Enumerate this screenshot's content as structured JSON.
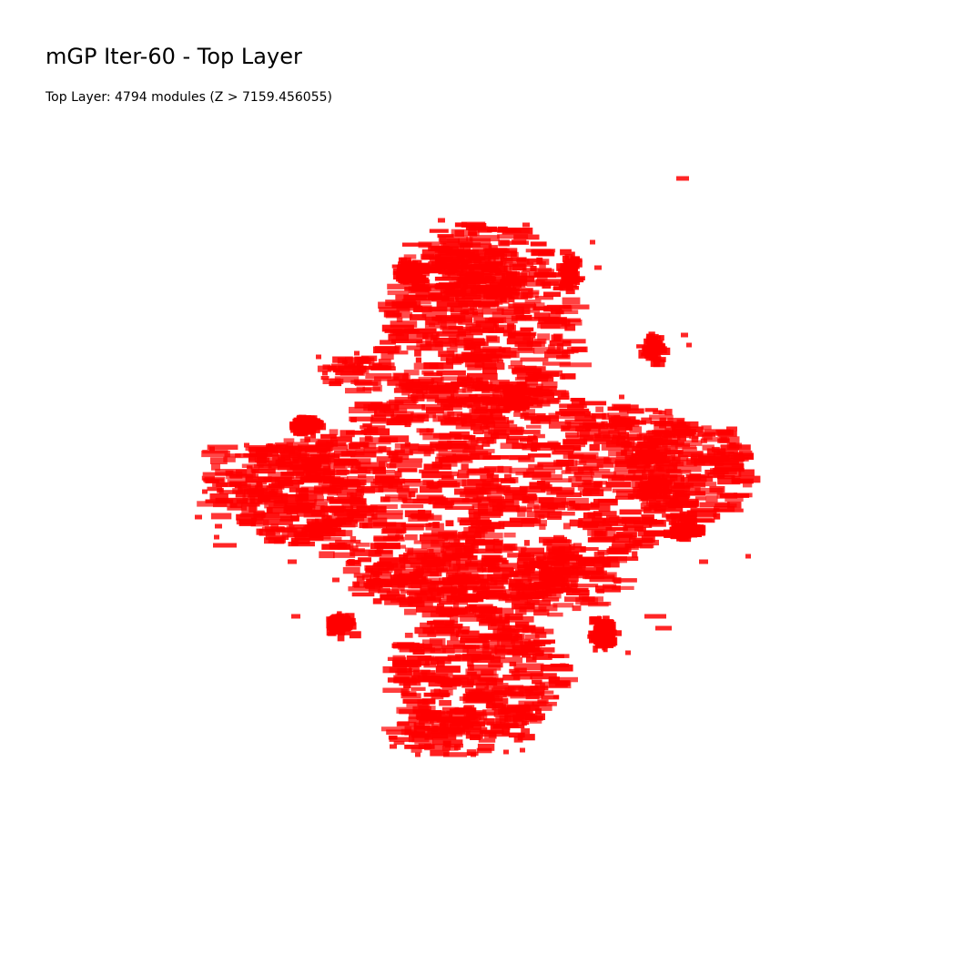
{
  "header": {
    "title": "mGP Iter-60 - Top Layer",
    "subtitle": "Top Layer: 4794 modules (Z > 7159.456055)"
  },
  "colors": {
    "module": "#ff0000",
    "background": "#ffffff"
  },
  "layer": {
    "name": "Top Layer",
    "module_count": 4794,
    "z_threshold": 7159.456055
  }
}
